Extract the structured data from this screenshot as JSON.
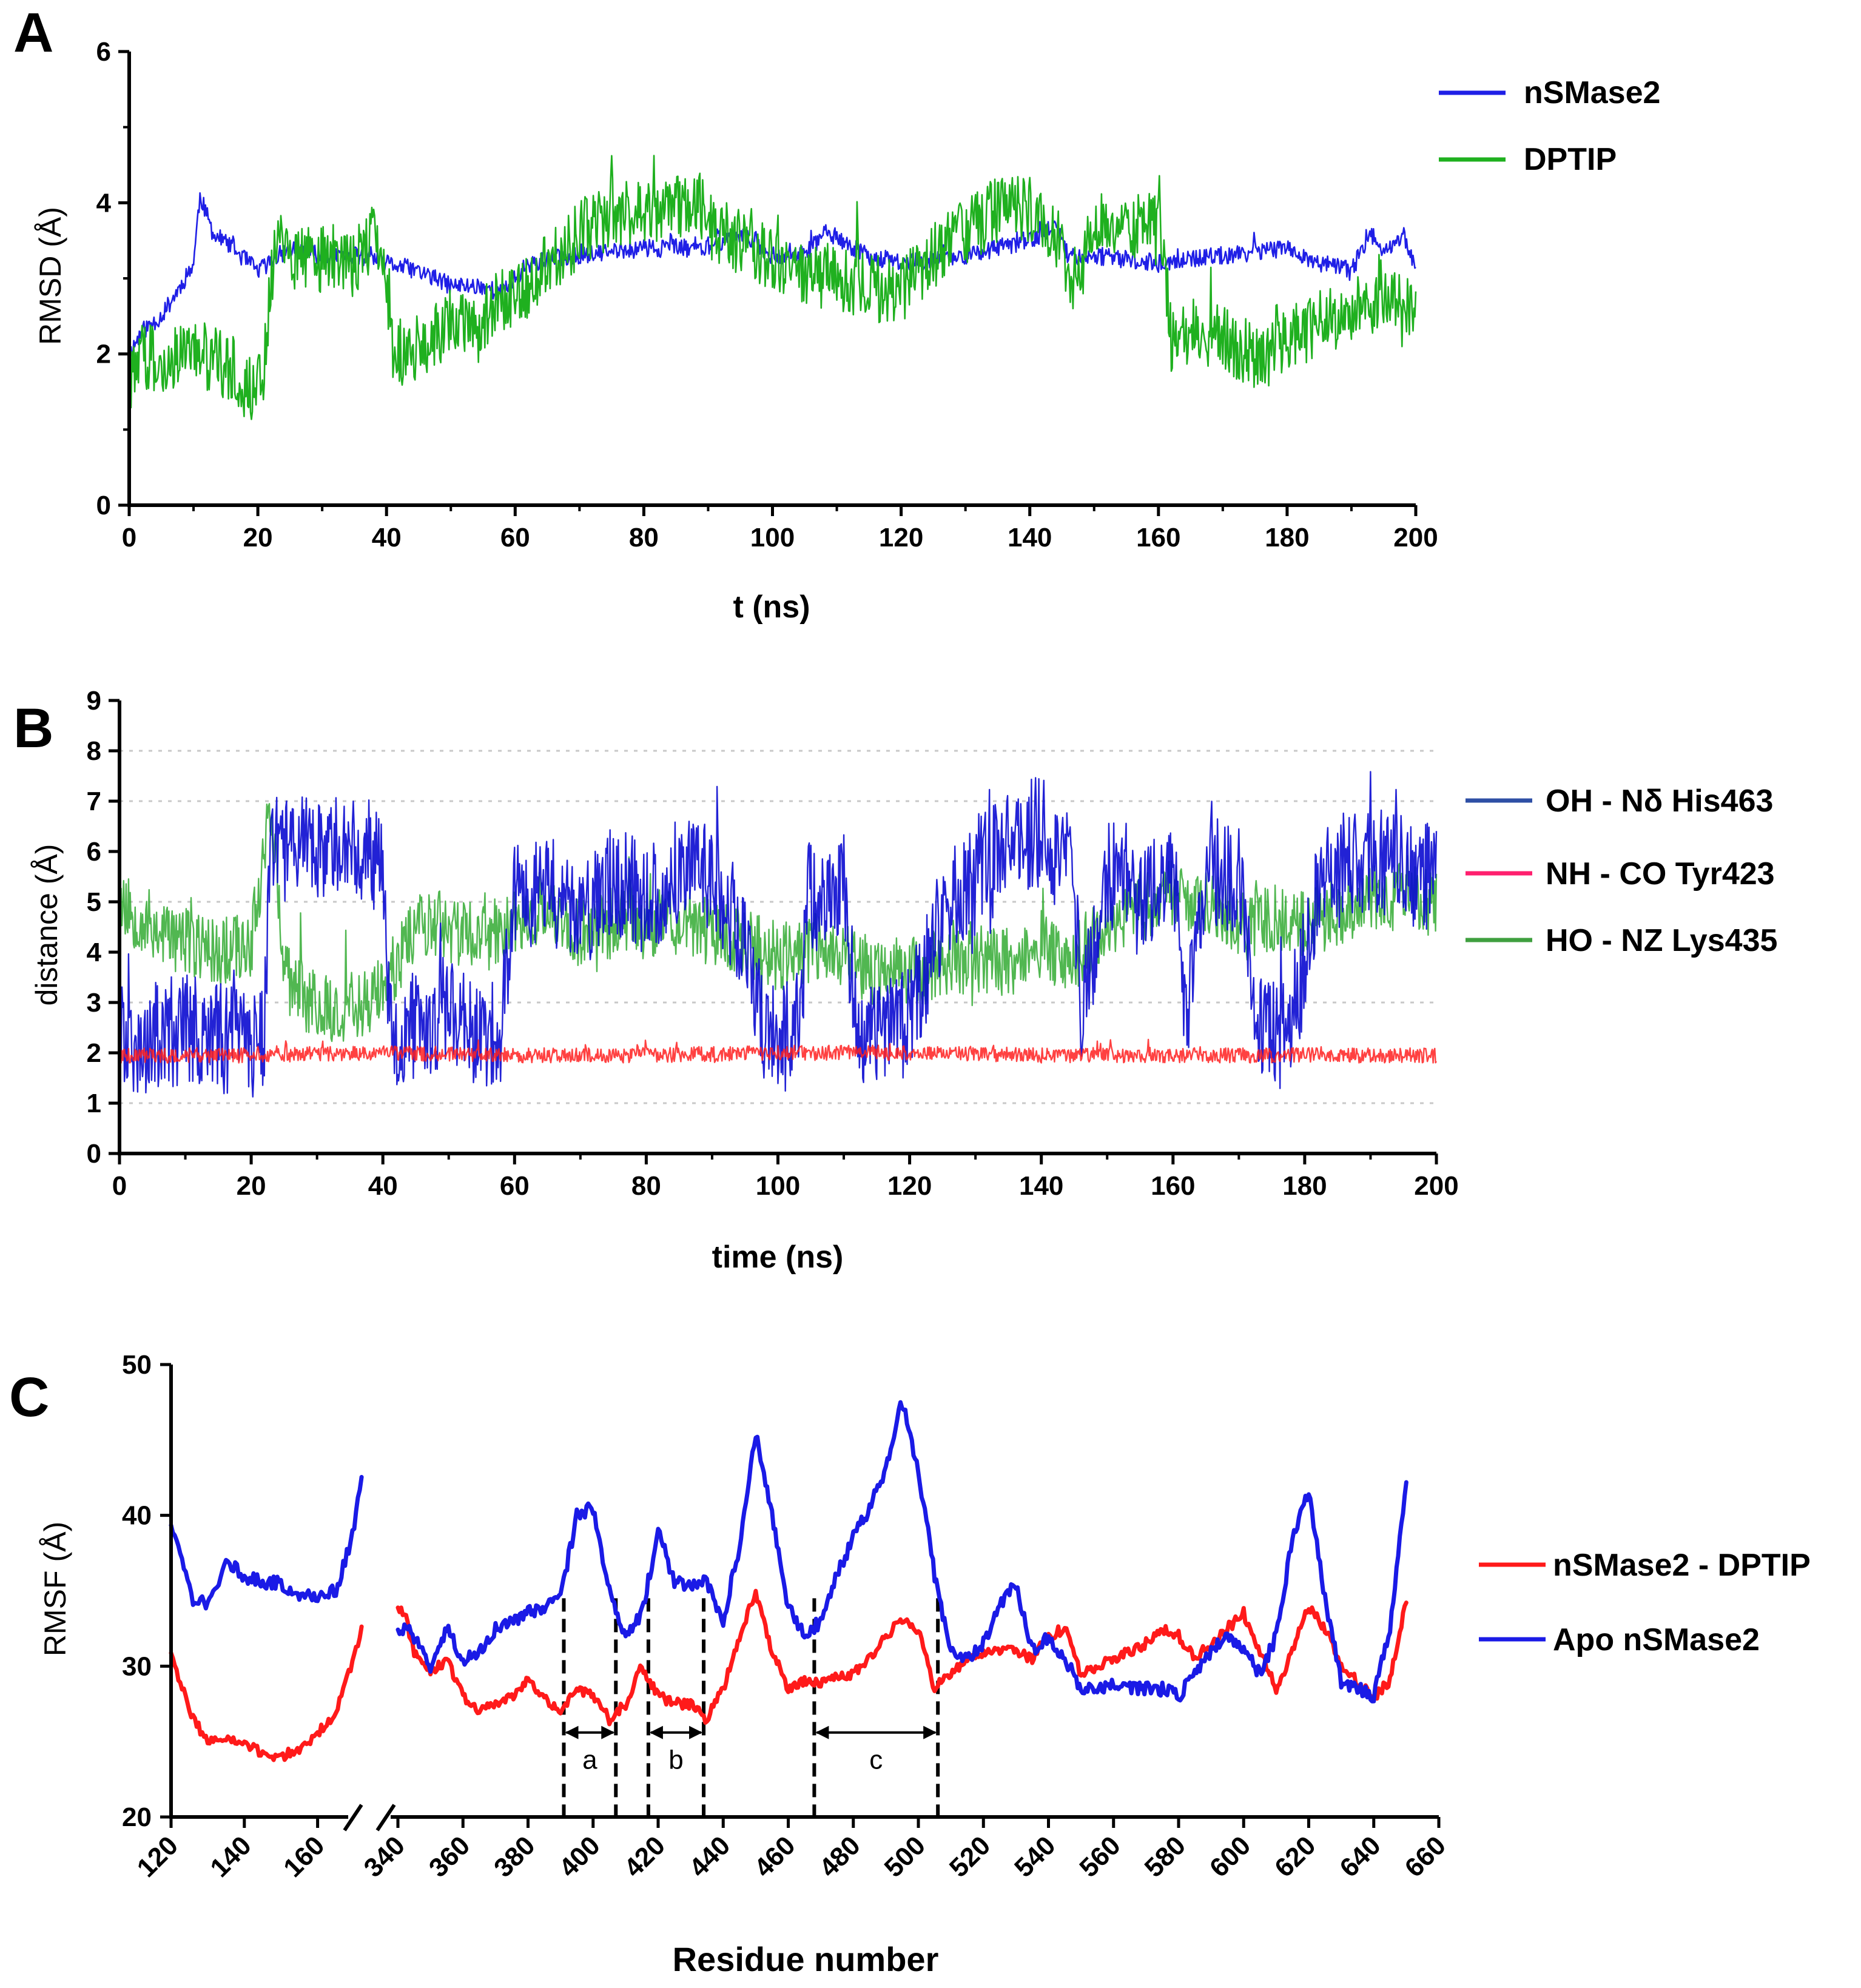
{
  "chart_data": [
    {
      "panel": "A",
      "type": "line",
      "title": "",
      "xlabel": "t (ns)",
      "ylabel": "RMSD (Å)",
      "xlim": [
        0,
        200
      ],
      "ylim": [
        0,
        6
      ],
      "xticks": [
        0,
        20,
        40,
        60,
        80,
        100,
        120,
        140,
        160,
        180,
        200
      ],
      "yticks": [
        0,
        2,
        4,
        6
      ],
      "legend_position": "right",
      "series": [
        {
          "name": "nSMase2",
          "color": "#1f1fe6",
          "noise": 0.12,
          "x": [
            0,
            2,
            5,
            8,
            10,
            11,
            13,
            16,
            20,
            25,
            30,
            35,
            40,
            45,
            50,
            55,
            58,
            62,
            70,
            80,
            90,
            95,
            100,
            105,
            108,
            115,
            120,
            130,
            140,
            144,
            146,
            150,
            160,
            170,
            180,
            185,
            190,
            193,
            195,
            198,
            200
          ],
          "y": [
            2.0,
            2.3,
            2.5,
            2.9,
            3.2,
            4.1,
            3.6,
            3.4,
            3.1,
            3.4,
            3.3,
            3.3,
            3.2,
            3.1,
            2.9,
            2.9,
            2.8,
            3.2,
            3.3,
            3.4,
            3.4,
            3.6,
            3.3,
            3.3,
            3.6,
            3.3,
            3.2,
            3.3,
            3.5,
            3.7,
            3.3,
            3.3,
            3.2,
            3.3,
            3.4,
            3.2,
            3.1,
            3.6,
            3.3,
            3.6,
            3.1
          ]
        },
        {
          "name": "DPTIP",
          "color": "#1fb01f",
          "noise": 0.45,
          "x": [
            0,
            0.5,
            2,
            5,
            10,
            15,
            18,
            20,
            21,
            22,
            23,
            25,
            30,
            35,
            38,
            40,
            41,
            45,
            50,
            55,
            60,
            65,
            70,
            75,
            80,
            85,
            88,
            90,
            95,
            100,
            105,
            110,
            115,
            120,
            125,
            130,
            135,
            140,
            145,
            147,
            150,
            155,
            160,
            162,
            165,
            170,
            175,
            180,
            185,
            190,
            195,
            200
          ],
          "y": [
            0.9,
            1.8,
            2.0,
            1.9,
            2.0,
            1.9,
            1.6,
            1.5,
            1.8,
            3.0,
            3.6,
            3.3,
            3.3,
            3.2,
            3.6,
            3.0,
            2.0,
            2.1,
            2.4,
            2.5,
            2.8,
            3.1,
            3.6,
            3.8,
            3.9,
            3.9,
            4.1,
            3.7,
            3.5,
            3.2,
            3.0,
            3.0,
            2.9,
            2.8,
            3.3,
            3.6,
            3.9,
            3.9,
            3.5,
            2.6,
            3.8,
            3.6,
            3.9,
            2.2,
            2.3,
            2.2,
            2.0,
            2.2,
            2.4,
            2.6,
            2.7,
            2.6
          ]
        }
      ]
    },
    {
      "panel": "B",
      "type": "line",
      "title": "",
      "xlabel": "time (ns)",
      "ylabel": "distance (Å)",
      "xlim": [
        0,
        200
      ],
      "ylim": [
        0,
        9
      ],
      "xticks": [
        0,
        20,
        40,
        60,
        80,
        100,
        120,
        140,
        160,
        180,
        200
      ],
      "yticks": [
        0,
        1,
        2,
        3,
        4,
        5,
        6,
        7,
        8,
        9
      ],
      "grid_y": [
        1,
        3,
        5,
        7,
        8
      ],
      "legend_position": "right",
      "series": [
        {
          "name": "OH - Nδ His463",
          "legend_color": "#2e4fa5",
          "color": "#0a0ad0",
          "noise": 1.1,
          "x": [
            0,
            5,
            10,
            15,
            20,
            22,
            23,
            25,
            30,
            35,
            40,
            41,
            45,
            50,
            55,
            58,
            60,
            65,
            70,
            75,
            80,
            85,
            90,
            95,
            98,
            100,
            103,
            105,
            110,
            112,
            115,
            120,
            125,
            130,
            135,
            140,
            145,
            146,
            150,
            155,
            160,
            162,
            165,
            170,
            173,
            178,
            182,
            185,
            190,
            195,
            200
          ],
          "y": [
            2.2,
            2.3,
            2.5,
            2.3,
            2.2,
            2.3,
            6.5,
            6.0,
            6.0,
            6.2,
            5.8,
            2.4,
            2.6,
            2.8,
            2.4,
            2.5,
            5.0,
            5.4,
            4.5,
            5.5,
            5.0,
            5.6,
            5.5,
            4.3,
            2.3,
            2.2,
            2.5,
            5.0,
            5.3,
            2.5,
            2.4,
            2.6,
            4.8,
            5.5,
            6.2,
            6.4,
            5.5,
            2.6,
            5.6,
            5.0,
            5.6,
            2.5,
            5.6,
            5.5,
            2.4,
            2.3,
            5.4,
            5.5,
            5.8,
            5.6,
            5.5
          ]
        },
        {
          "name": "NH - CO Tyr423",
          "legend_color": "#ff1f6e",
          "color": "#ff2020",
          "noise": 0.15,
          "x": [
            0,
            20,
            40,
            60,
            80,
            100,
            120,
            140,
            160,
            180,
            200
          ],
          "y": [
            1.95,
            1.95,
            2.0,
            1.95,
            1.95,
            2.0,
            2.0,
            1.95,
            1.95,
            1.95,
            1.95
          ]
        },
        {
          "name": "HO - NZ Lys435",
          "legend_color": "#3f9f3f",
          "color": "#33aa33",
          "noise": 0.7,
          "x": [
            0,
            5,
            10,
            15,
            20,
            23,
            25,
            30,
            35,
            40,
            45,
            50,
            55,
            60,
            65,
            70,
            75,
            80,
            85,
            90,
            95,
            100,
            105,
            110,
            115,
            120,
            125,
            130,
            135,
            140,
            145,
            150,
            155,
            160,
            165,
            170,
            175,
            180,
            185,
            190,
            195,
            200
          ],
          "y": [
            5.0,
            4.5,
            4.2,
            4.0,
            4.2,
            7.0,
            3.5,
            2.9,
            2.9,
            3.2,
            4.6,
            4.5,
            4.2,
            4.6,
            4.8,
            4.2,
            4.6,
            4.5,
            4.6,
            4.4,
            4.2,
            3.9,
            4.1,
            4.0,
            3.5,
            3.6,
            3.8,
            3.9,
            3.8,
            4.1,
            3.9,
            4.6,
            4.9,
            5.2,
            5.0,
            4.5,
            4.7,
            4.5,
            4.8,
            5.0,
            5.1,
            5.0
          ]
        }
      ]
    },
    {
      "panel": "C",
      "type": "line",
      "title": "",
      "xlabel": "Residue number",
      "ylabel": "RMSF (Å)",
      "x_axis_break": [
        170,
        340
      ],
      "xlim_left": [
        120,
        170
      ],
      "xlim_right": [
        340,
        660
      ],
      "ylim": [
        20,
        50
      ],
      "xticks": [
        120,
        140,
        160,
        340,
        360,
        380,
        400,
        420,
        440,
        460,
        480,
        500,
        520,
        540,
        560,
        580,
        600,
        620,
        640,
        660
      ],
      "yticks": [
        20,
        30,
        40,
        50
      ],
      "legend_position": "right",
      "series": [
        {
          "name": "nSMase2 - DPTIP",
          "color": "#ff1a1a",
          "noise": 0.35,
          "x": [
            120,
            125,
            130,
            135,
            140,
            145,
            150,
            155,
            160,
            165,
            170,
            172,
            340,
            342,
            345,
            350,
            355,
            360,
            365,
            370,
            375,
            380,
            385,
            390,
            395,
            400,
            405,
            410,
            415,
            420,
            425,
            430,
            435,
            440,
            445,
            450,
            455,
            460,
            465,
            470,
            475,
            480,
            485,
            490,
            495,
            500,
            505,
            510,
            515,
            520,
            525,
            530,
            535,
            540,
            545,
            550,
            555,
            560,
            565,
            570,
            575,
            580,
            585,
            590,
            595,
            600,
            605,
            610,
            615,
            620,
            625,
            630,
            635,
            640,
            645,
            650
          ],
          "y": [
            31.0,
            27.0,
            25.0,
            25.2,
            24.8,
            24.2,
            24.0,
            24.5,
            25.5,
            27.0,
            30.5,
            32.5,
            34.0,
            33.5,
            31.0,
            29.5,
            30.5,
            28.0,
            27.0,
            27.5,
            28.0,
            29.0,
            28.0,
            27.0,
            28.5,
            28.0,
            26.5,
            27.5,
            30.0,
            28.0,
            27.5,
            27.5,
            26.5,
            28.5,
            32.0,
            35.0,
            31.0,
            28.5,
            29.0,
            29.0,
            29.2,
            29.5,
            30.5,
            32.0,
            33.0,
            32.5,
            28.5,
            29.5,
            30.5,
            31.0,
            31.0,
            31.0,
            30.5,
            32.0,
            32.5,
            29.5,
            30.0,
            30.5,
            31.0,
            31.5,
            32.5,
            32.0,
            30.5,
            31.5,
            32.5,
            33.5,
            31.0,
            28.5,
            31.0,
            34.0,
            32.5,
            30.0,
            29.0,
            28.0,
            29.0,
            34.5
          ]
        },
        {
          "name": "Apo nSMase2",
          "color": "#1a1ae6",
          "noise": 0.45,
          "x": [
            120,
            123,
            126,
            130,
            135,
            140,
            145,
            150,
            155,
            160,
            165,
            170,
            172,
            340,
            342,
            345,
            350,
            355,
            360,
            365,
            370,
            375,
            380,
            385,
            390,
            395,
            400,
            405,
            410,
            415,
            420,
            425,
            430,
            435,
            440,
            445,
            450,
            455,
            460,
            465,
            470,
            475,
            480,
            485,
            490,
            495,
            500,
            505,
            510,
            515,
            520,
            525,
            530,
            535,
            540,
            545,
            550,
            555,
            560,
            565,
            570,
            575,
            580,
            585,
            590,
            595,
            600,
            605,
            610,
            615,
            620,
            625,
            630,
            635,
            640,
            645,
            650
          ],
          "y": [
            39.5,
            37.0,
            34.5,
            34.0,
            37.0,
            36.0,
            35.5,
            35.5,
            34.8,
            34.5,
            35.0,
            39.0,
            42.5,
            32.5,
            32.5,
            32.0,
            30.0,
            32.5,
            30.5,
            31.0,
            32.5,
            33.0,
            33.5,
            34.0,
            34.5,
            40.0,
            40.5,
            35.0,
            32.0,
            33.5,
            39.0,
            35.5,
            35.5,
            35.5,
            33.0,
            38.0,
            45.5,
            40.0,
            34.0,
            32.0,
            33.0,
            36.0,
            38.5,
            40.5,
            43.0,
            47.5,
            43.0,
            36.0,
            31.0,
            30.5,
            31.5,
            34.0,
            35.5,
            31.0,
            32.0,
            30.5,
            28.5,
            28.5,
            29.0,
            28.5,
            28.5,
            28.5,
            28.0,
            29.5,
            31.0,
            32.0,
            31.0,
            29.5,
            32.0,
            38.5,
            41.5,
            34.5,
            29.0,
            28.5,
            28.0,
            32.5,
            42.0
          ]
        }
      ],
      "annotations": [
        {
          "label": "a",
          "x_start": 391,
          "x_end": 407
        },
        {
          "label": "b",
          "x_start": 417,
          "x_end": 434
        },
        {
          "label": "c",
          "x_start": 468,
          "x_end": 506
        }
      ]
    }
  ],
  "panel_labels": {
    "a": "A",
    "b": "B",
    "c": "C"
  }
}
